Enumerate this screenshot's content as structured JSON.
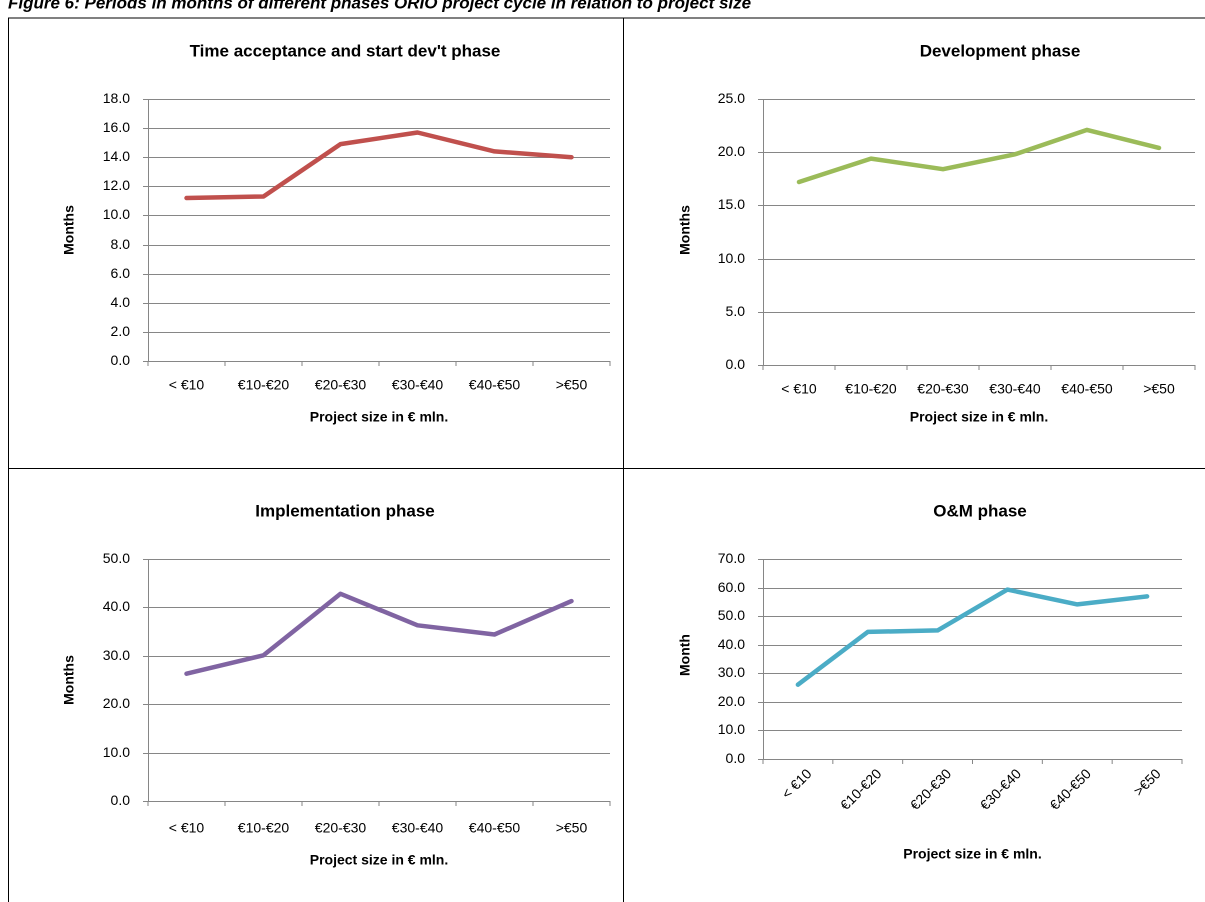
{
  "caption": "Figure 6: Periods in months of different phases ORIO project cycle in relation to project size",
  "chart_data": [
    {
      "type": "line",
      "title": "Time acceptance and start dev't phase",
      "x_label": "Project size in € mln.",
      "y_label": "Months",
      "categories": [
        "< €10",
        "€10-€20",
        "€20-€30",
        "€30-€40",
        "€40-€50",
        ">€50"
      ],
      "values": [
        11.2,
        11.3,
        14.9,
        15.7,
        14.4,
        14.0
      ],
      "color": "#c0504d",
      "ylim": [
        0,
        18
      ],
      "yticks": [
        {
          "value": 0,
          "label": "0.0"
        },
        {
          "value": 2,
          "label": "2.0"
        },
        {
          "value": 4,
          "label": "4.0"
        },
        {
          "value": 6,
          "label": "6.0"
        },
        {
          "value": 8,
          "label": "8.0"
        },
        {
          "value": 10,
          "label": "10.0"
        },
        {
          "value": 12,
          "label": "12.0"
        },
        {
          "value": 14,
          "label": "14.0"
        },
        {
          "value": 16,
          "label": "16.0"
        },
        {
          "value": 18,
          "label": "18.0"
        }
      ],
      "grid": true
    },
    {
      "type": "line",
      "title": "Development phase",
      "x_label": "Project size in € mln.",
      "y_label": "Months",
      "categories": [
        "< €10",
        "€10-€20",
        "€20-€30",
        "€30-€40",
        "€40-€50",
        ">€50"
      ],
      "values": [
        17.2,
        19.4,
        18.4,
        19.8,
        22.1,
        20.4
      ],
      "color": "#9bbb59",
      "ylim": [
        0,
        25
      ],
      "yticks": [
        {
          "value": 0,
          "label": "0.0"
        },
        {
          "value": 5,
          "label": "5.0"
        },
        {
          "value": 10,
          "label": "10.0"
        },
        {
          "value": 15,
          "label": "15.0"
        },
        {
          "value": 20,
          "label": "20.0"
        },
        {
          "value": 25,
          "label": "25.0"
        }
      ],
      "grid": true
    },
    {
      "type": "line",
      "title": "Implementation phase",
      "x_label": "Project size in € mln.",
      "y_label": "Months",
      "categories": [
        "< €10",
        "€10-€20",
        "€20-€30",
        "€30-€40",
        "€40-€50",
        ">€50"
      ],
      "values": [
        26.3,
        30.1,
        42.8,
        36.3,
        34.4,
        41.3
      ],
      "color": "#8064a2",
      "ylim": [
        0,
        50
      ],
      "yticks": [
        {
          "value": 0,
          "label": "0.0"
        },
        {
          "value": 10,
          "label": "10.0"
        },
        {
          "value": 20,
          "label": "20.0"
        },
        {
          "value": 30,
          "label": "30.0"
        },
        {
          "value": 40,
          "label": "40.0"
        },
        {
          "value": 50,
          "label": "50.0"
        }
      ],
      "grid": true
    },
    {
      "type": "line",
      "title": "O&M phase",
      "x_label": "Project size in € mln.",
      "y_label": "Month",
      "categories": [
        "< €10",
        "€10-€20",
        "€20-€30",
        "€30-€40",
        "€40-€50",
        ">€50"
      ],
      "values": [
        26.0,
        44.5,
        45.0,
        59.3,
        54.1,
        56.9
      ],
      "color": "#4bacc6",
      "ylim": [
        0,
        70
      ],
      "yticks": [
        {
          "value": 0,
          "label": "0.0"
        },
        {
          "value": 10,
          "label": "10.0"
        },
        {
          "value": 20,
          "label": "20.0"
        },
        {
          "value": 30,
          "label": "30.0"
        },
        {
          "value": 40,
          "label": "40.0"
        },
        {
          "value": 50,
          "label": "50.0"
        },
        {
          "value": 60,
          "label": "60.0"
        },
        {
          "value": 70,
          "label": "70.0"
        }
      ],
      "grid": true
    }
  ]
}
